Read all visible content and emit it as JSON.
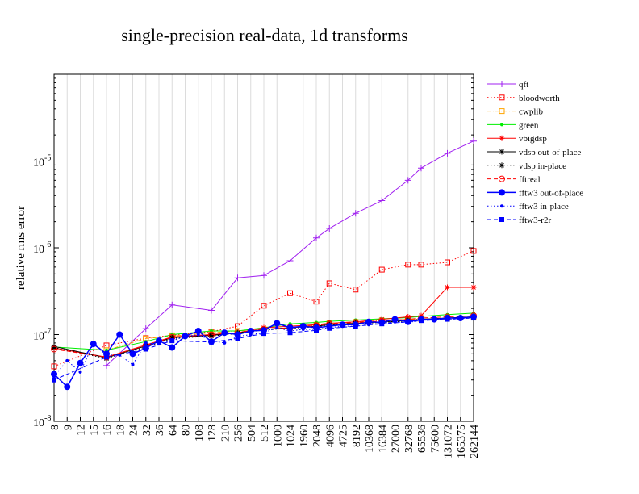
{
  "chart_data": {
    "type": "line",
    "title": "single-precision real-data, 1d transforms",
    "xlabel": "",
    "ylabel": "relative rms error",
    "yscale": "log",
    "ylim": [
      1e-08,
      0.0001
    ],
    "y_ticks": [
      {
        "value": 1e-08,
        "base": "10",
        "exp": "-8"
      },
      {
        "value": 1e-07,
        "base": "10",
        "exp": "-7"
      },
      {
        "value": 1e-06,
        "base": "10",
        "exp": "-6"
      },
      {
        "value": 1e-05,
        "base": "10",
        "exp": "-5"
      }
    ],
    "grid": true,
    "legend_position": "right",
    "categories": [
      "8",
      "9",
      "12",
      "15",
      "16",
      "18",
      "24",
      "32",
      "36",
      "64",
      "80",
      "108",
      "128",
      "210",
      "256",
      "504",
      "512",
      "1000",
      "1024",
      "1960",
      "2048",
      "4096",
      "4725",
      "8192",
      "10368",
      "16384",
      "27000",
      "32768",
      "65536",
      "75600",
      "131072",
      "165375",
      "262144"
    ],
    "series": [
      {
        "name": "qft",
        "color": "#a020f0",
        "dash": "solid",
        "marker": "plus",
        "points": [
          [
            "16",
            4.4e-08
          ],
          [
            "32",
            1.17e-07
          ],
          [
            "64",
            2.2e-07
          ],
          [
            "128",
            1.9e-07
          ],
          [
            "256",
            4.5e-07
          ],
          [
            "512",
            4.8e-07
          ],
          [
            "1024",
            7.1e-07
          ],
          [
            "2048",
            1.3e-06
          ],
          [
            "4096",
            1.67e-06
          ],
          [
            "8192",
            2.5e-06
          ],
          [
            "16384",
            3.5e-06
          ],
          [
            "32768",
            6e-06
          ],
          [
            "65536",
            8.3e-06
          ],
          [
            "131072",
            1.23e-05
          ],
          [
            "262144",
            1.7e-05
          ]
        ]
      },
      {
        "name": "bloodworth",
        "color": "#ff0000",
        "dash": "dotted",
        "marker": "square-open",
        "points": [
          [
            "8",
            4.3e-08
          ],
          [
            "16",
            7.5e-08
          ],
          [
            "32",
            9.1e-08
          ],
          [
            "64",
            9.8e-08
          ],
          [
            "128",
            1.08e-07
          ],
          [
            "256",
            1.25e-07
          ],
          [
            "512",
            2.15e-07
          ],
          [
            "1024",
            3e-07
          ],
          [
            "2048",
            2.4e-07
          ],
          [
            "4096",
            3.9e-07
          ],
          [
            "8192",
            3.3e-07
          ],
          [
            "16384",
            5.6e-07
          ],
          [
            "32768",
            6.4e-07
          ],
          [
            "65536",
            6.4e-07
          ],
          [
            "131072",
            6.8e-07
          ],
          [
            "262144",
            9.2e-07
          ]
        ]
      },
      {
        "name": "cwplib",
        "color": "#ffa500",
        "dash": "dashdot",
        "marker": "square-open",
        "points": [
          [
            "16",
            6.6e-08
          ],
          [
            "32",
            9e-08
          ],
          [
            "64",
            9.6e-08
          ],
          [
            "128",
            1.05e-07
          ],
          [
            "256",
            1.1e-07
          ],
          [
            "512",
            1.15e-07
          ],
          [
            "1024",
            1.2e-07
          ],
          [
            "2048",
            1.3e-07
          ],
          [
            "4096",
            1.35e-07
          ],
          [
            "8192",
            1.4e-07
          ],
          [
            "16384",
            1.45e-07
          ],
          [
            "32768",
            1.5e-07
          ],
          [
            "65536",
            1.5e-07
          ],
          [
            "131072",
            1.55e-07
          ],
          [
            "262144",
            1.6e-07
          ]
        ]
      },
      {
        "name": "green",
        "color": "#00ee00",
        "dash": "solid",
        "marker": "dot",
        "points": [
          [
            "8",
            7.2e-08
          ],
          [
            "16",
            6.6e-08
          ],
          [
            "32",
            8.3e-08
          ],
          [
            "64",
            1e-07
          ],
          [
            "128",
            1.1e-07
          ],
          [
            "256",
            1.1e-07
          ],
          [
            "512",
            1.2e-07
          ],
          [
            "1024",
            1.33e-07
          ],
          [
            "2048",
            1.38e-07
          ],
          [
            "4096",
            1.42e-07
          ],
          [
            "8192",
            1.47e-07
          ],
          [
            "16384",
            1.52e-07
          ],
          [
            "32768",
            1.57e-07
          ],
          [
            "65536",
            1.62e-07
          ],
          [
            "131072",
            1.7e-07
          ],
          [
            "262144",
            1.77e-07
          ]
        ]
      },
      {
        "name": "vbigdsp",
        "color": "#ff0000",
        "dash": "solid",
        "marker": "star",
        "points": [
          [
            "8",
            7e-08
          ],
          [
            "16",
            5.5e-08
          ],
          [
            "32",
            7.6e-08
          ],
          [
            "64",
            9.4e-08
          ],
          [
            "128",
            1e-07
          ],
          [
            "256",
            1.05e-07
          ],
          [
            "512",
            1.2e-07
          ],
          [
            "1024",
            1.25e-07
          ],
          [
            "2048",
            1.3e-07
          ],
          [
            "4096",
            1.35e-07
          ],
          [
            "8192",
            1.4e-07
          ],
          [
            "16384",
            1.5e-07
          ],
          [
            "32768",
            1.6e-07
          ],
          [
            "65536",
            1.65e-07
          ],
          [
            "131072",
            3.5e-07
          ],
          [
            "262144",
            3.5e-07
          ]
        ]
      },
      {
        "name": "vdsp out-of-place",
        "color": "#000000",
        "dash": "solid",
        "marker": "star",
        "points": [
          [
            "8",
            7.3e-08
          ],
          [
            "16",
            5.4e-08
          ],
          [
            "32",
            7.4e-08
          ],
          [
            "64",
            9.2e-08
          ],
          [
            "128",
            9.8e-08
          ],
          [
            "256",
            1.05e-07
          ],
          [
            "512",
            1.15e-07
          ],
          [
            "1024",
            1.2e-07
          ],
          [
            "2048",
            1.25e-07
          ],
          [
            "4096",
            1.3e-07
          ],
          [
            "8192",
            1.35e-07
          ],
          [
            "16384",
            1.4e-07
          ],
          [
            "32768",
            1.45e-07
          ],
          [
            "65536",
            1.5e-07
          ],
          [
            "131072",
            1.55e-07
          ],
          [
            "262144",
            1.6e-07
          ]
        ]
      },
      {
        "name": "vdsp in-place",
        "color": "#000000",
        "dash": "dotted",
        "marker": "star",
        "points": [
          [
            "8",
            7.1e-08
          ],
          [
            "16",
            5.3e-08
          ],
          [
            "32",
            7.2e-08
          ],
          [
            "64",
            9e-08
          ],
          [
            "128",
            9.6e-08
          ],
          [
            "256",
            1.03e-07
          ],
          [
            "512",
            1.13e-07
          ],
          [
            "1024",
            1.18e-07
          ],
          [
            "2048",
            1.23e-07
          ],
          [
            "4096",
            1.28e-07
          ],
          [
            "8192",
            1.33e-07
          ],
          [
            "16384",
            1.38e-07
          ],
          [
            "32768",
            1.43e-07
          ],
          [
            "65536",
            1.48e-07
          ],
          [
            "131072",
            1.53e-07
          ],
          [
            "262144",
            1.58e-07
          ]
        ]
      },
      {
        "name": "fftreal",
        "color": "#ff0000",
        "dash": "dashed",
        "marker": "circle-open",
        "points": [
          [
            "8",
            6.8e-08
          ],
          [
            "16",
            5.5e-08
          ],
          [
            "32",
            7.5e-08
          ],
          [
            "64",
            9.3e-08
          ],
          [
            "128",
            1e-07
          ],
          [
            "256",
            1.05e-07
          ],
          [
            "512",
            1.15e-07
          ],
          [
            "1024",
            1.2e-07
          ],
          [
            "2048",
            1.27e-07
          ],
          [
            "4096",
            1.33e-07
          ],
          [
            "8192",
            1.38e-07
          ],
          [
            "16384",
            1.43e-07
          ],
          [
            "32768",
            1.5e-07
          ],
          [
            "65536",
            1.55e-07
          ],
          [
            "131072",
            1.6e-07
          ],
          [
            "262144",
            1.65e-07
          ]
        ]
      },
      {
        "name": "fftw3 out-of-place",
        "color": "#0000ff",
        "dash": "solid",
        "marker": "circle",
        "points": [
          [
            "8",
            3.5e-08
          ],
          [
            "9",
            2.5e-08
          ],
          [
            "12",
            4.7e-08
          ],
          [
            "15",
            7.8e-08
          ],
          [
            "16",
            6e-08
          ],
          [
            "18",
            1e-07
          ],
          [
            "24",
            6e-08
          ],
          [
            "32",
            7e-08
          ],
          [
            "36",
            8.5e-08
          ],
          [
            "64",
            7.1e-08
          ],
          [
            "80",
            9.6e-08
          ],
          [
            "108",
            1.1e-07
          ],
          [
            "128",
            8.3e-08
          ],
          [
            "210",
            1.05e-07
          ],
          [
            "256",
            1e-07
          ],
          [
            "504",
            1.1e-07
          ],
          [
            "512",
            1.12e-07
          ],
          [
            "1000",
            1.35e-07
          ],
          [
            "1024",
            1.2e-07
          ],
          [
            "1960",
            1.25e-07
          ],
          [
            "2048",
            1.2e-07
          ],
          [
            "4096",
            1.25e-07
          ],
          [
            "4725",
            1.3e-07
          ],
          [
            "8192",
            1.3e-07
          ],
          [
            "10368",
            1.4e-07
          ],
          [
            "16384",
            1.38e-07
          ],
          [
            "27000",
            1.5e-07
          ],
          [
            "32768",
            1.4e-07
          ],
          [
            "65536",
            1.5e-07
          ],
          [
            "75600",
            1.5e-07
          ],
          [
            "131072",
            1.55e-07
          ],
          [
            "165375",
            1.55e-07
          ],
          [
            "262144",
            1.6e-07
          ]
        ]
      },
      {
        "name": "fftw3 in-place",
        "color": "#0000ff",
        "dash": "dotted",
        "marker": "dot",
        "points": [
          [
            "8",
            3.3e-08
          ],
          [
            "9",
            5e-08
          ],
          [
            "12",
            3.7e-08
          ],
          [
            "15",
            7.8e-08
          ],
          [
            "16",
            5.8e-08
          ],
          [
            "18",
            5.8e-08
          ],
          [
            "24",
            4.5e-08
          ],
          [
            "32",
            8e-08
          ],
          [
            "36",
            7.8e-08
          ],
          [
            "64",
            8.5e-08
          ],
          [
            "80",
            9.5e-08
          ],
          [
            "108",
            1e-07
          ],
          [
            "128",
            8.5e-08
          ],
          [
            "210",
            8e-08
          ],
          [
            "256",
            9.5e-08
          ],
          [
            "504",
            1e-07
          ],
          [
            "512",
            1.05e-07
          ],
          [
            "1000",
            1.2e-07
          ],
          [
            "1024",
            1.1e-07
          ],
          [
            "1960",
            1.15e-07
          ],
          [
            "2048",
            1.15e-07
          ],
          [
            "4096",
            1.2e-07
          ],
          [
            "4725",
            1.25e-07
          ],
          [
            "8192",
            1.25e-07
          ],
          [
            "10368",
            1.3e-07
          ],
          [
            "16384",
            1.35e-07
          ],
          [
            "27000",
            1.4e-07
          ],
          [
            "32768",
            1.38e-07
          ],
          [
            "65536",
            1.45e-07
          ],
          [
            "75600",
            1.5e-07
          ],
          [
            "131072",
            1.5e-07
          ],
          [
            "165375",
            1.52e-07
          ],
          [
            "262144",
            1.58e-07
          ]
        ]
      },
      {
        "name": "fftw3-r2r",
        "color": "#0000ff",
        "dash": "dashed",
        "marker": "square",
        "points": [
          [
            "8",
            3e-08
          ],
          [
            "16",
            5.5e-08
          ],
          [
            "32",
            6.8e-08
          ],
          [
            "64",
            8.5e-08
          ],
          [
            "128",
            8.2e-08
          ],
          [
            "256",
            9e-08
          ],
          [
            "512",
            1.03e-07
          ],
          [
            "1024",
            1.05e-07
          ],
          [
            "2048",
            1.12e-07
          ],
          [
            "4096",
            1.18e-07
          ],
          [
            "8192",
            1.25e-07
          ],
          [
            "16384",
            1.33e-07
          ],
          [
            "32768",
            1.4e-07
          ],
          [
            "65536",
            1.45e-07
          ],
          [
            "131072",
            1.5e-07
          ],
          [
            "262144",
            1.55e-07
          ]
        ]
      }
    ]
  }
}
